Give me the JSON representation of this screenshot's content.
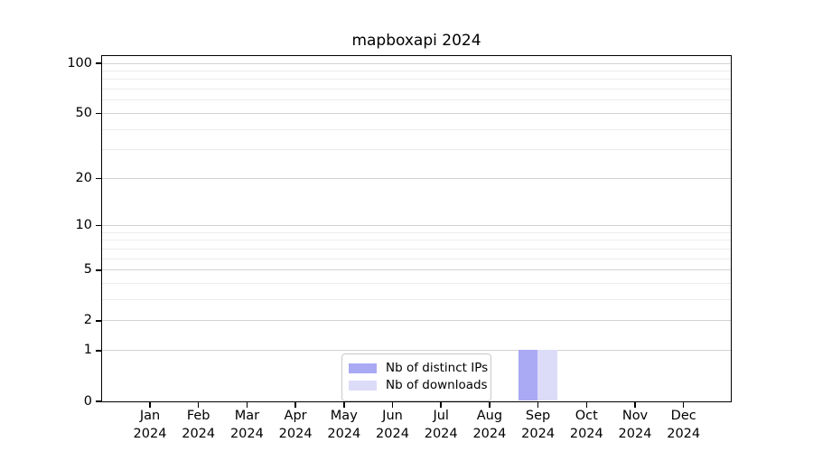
{
  "chart_data": {
    "type": "bar",
    "title": "mapboxapi 2024",
    "categories": [
      "Jan",
      "Feb",
      "Mar",
      "Apr",
      "May",
      "Jun",
      "Jul",
      "Aug",
      "Sep",
      "Oct",
      "Nov",
      "Dec"
    ],
    "category_year": "2024",
    "series": [
      {
        "name": "Nb of distinct IPs",
        "color": "#a9a9f4",
        "values": [
          0,
          0,
          0,
          0,
          0,
          0,
          0,
          0,
          1,
          0,
          0,
          0
        ]
      },
      {
        "name": "Nb of downloads",
        "color": "#dcdcf8",
        "values": [
          0,
          0,
          0,
          0,
          0,
          0,
          0,
          0,
          1,
          0,
          0,
          0
        ]
      }
    ],
    "y_axis": {
      "scale": "log10(1+y)",
      "tick_values": [
        100,
        50,
        20,
        10,
        5,
        2,
        1,
        0
      ],
      "tick_labels": [
        "100",
        "50",
        "20",
        "10",
        "5",
        "2",
        "1",
        "0"
      ],
      "major_grid_values": [
        100,
        50,
        20,
        10,
        5,
        2,
        1
      ],
      "minor_grid_values": [
        90,
        80,
        70,
        60,
        40,
        30,
        9,
        8,
        7,
        6,
        4,
        3
      ],
      "ylim": [
        0,
        107
      ]
    },
    "legend": {
      "position": "lower center",
      "entries": [
        "Nb of distinct IPs",
        "Nb of downloads"
      ]
    },
    "grid": true,
    "colors": {
      "major_grid": "#d3d3d3",
      "minor_grid": "#ececec",
      "axis": "#000000",
      "text": "#000000",
      "background": "#ffffff"
    }
  }
}
